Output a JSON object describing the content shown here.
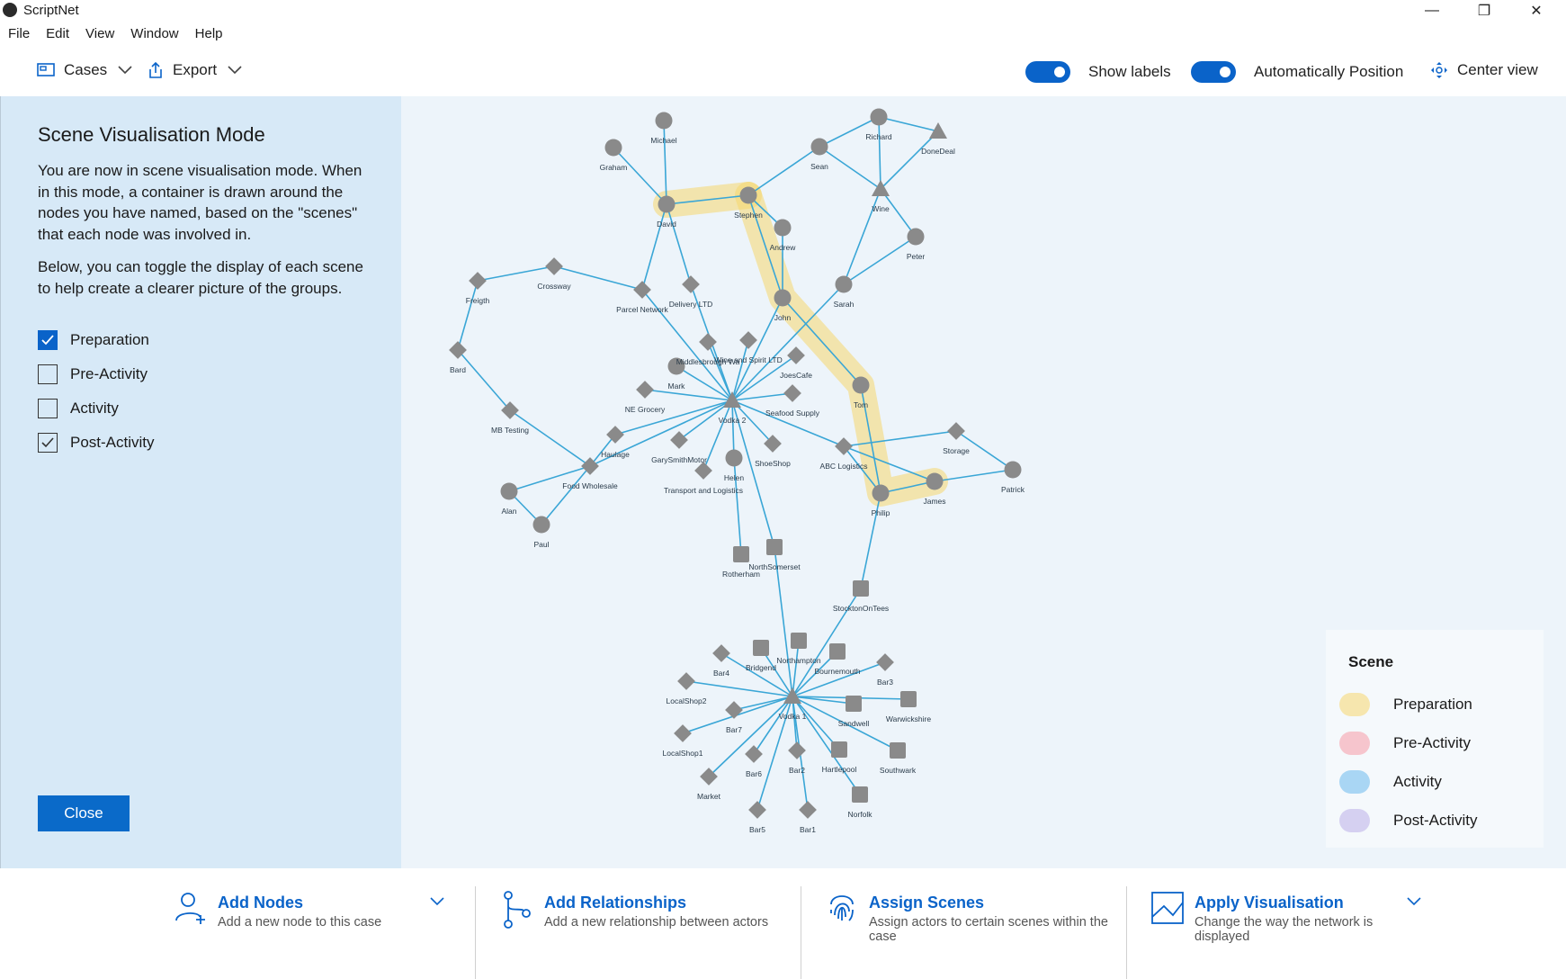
{
  "app": {
    "title": "ScriptNet"
  },
  "window_controls": {
    "minimize": "—",
    "maximize": "❐",
    "close": "✕"
  },
  "menu": [
    "File",
    "Edit",
    "View",
    "Window",
    "Help"
  ],
  "toolbar": {
    "cases": "Cases",
    "export": "Export",
    "show_labels": {
      "label": "Show labels",
      "on": true
    },
    "auto_position": {
      "label": "Automatically Position",
      "on": true
    },
    "center_view": "Center view"
  },
  "left_panel": {
    "title": "Scene Visualisation Mode",
    "para1": "You are now in scene visualisation mode. When in this mode, a container is drawn around the nodes you have named, based on the \"scenes\" that each node was involved in.",
    "para2": "Below, you can toggle the display of each scene to help create a clearer picture of the groups.",
    "checkboxes": [
      {
        "label": "Preparation",
        "checked": true
      },
      {
        "label": "Pre-Activity",
        "checked": false
      },
      {
        "label": "Activity",
        "checked": false
      },
      {
        "label": "Post-Activity",
        "checked": true
      }
    ],
    "close": "Close"
  },
  "legend": {
    "title": "Scene",
    "items": [
      {
        "label": "Preparation",
        "color": "#f5d76e"
      },
      {
        "label": "Pre-Activity",
        "color": "#f59aa5"
      },
      {
        "label": "Activity",
        "color": "#6ab9ec"
      },
      {
        "label": "Post-Activity",
        "color": "#b9aee8"
      }
    ]
  },
  "graph": {
    "nodes": [
      {
        "id": "Michael",
        "shape": "circle"
      },
      {
        "id": "Graham",
        "shape": "circle"
      },
      {
        "id": "David",
        "shape": "circle"
      },
      {
        "id": "Stephen",
        "shape": "circle"
      },
      {
        "id": "Andrew",
        "shape": "circle"
      },
      {
        "id": "Sean",
        "shape": "circle"
      },
      {
        "id": "Richard",
        "shape": "circle"
      },
      {
        "id": "DoneDeal",
        "shape": "triangle"
      },
      {
        "id": "Wine",
        "shape": "triangle"
      },
      {
        "id": "Peter",
        "shape": "circle"
      },
      {
        "id": "Sarah",
        "shape": "circle"
      },
      {
        "id": "John",
        "shape": "circle"
      },
      {
        "id": "Freigth",
        "shape": "diamond"
      },
      {
        "id": "Crossway",
        "shape": "diamond"
      },
      {
        "id": "Parcel Network",
        "shape": "diamond"
      },
      {
        "id": "Delivery LTD",
        "shape": "diamond"
      },
      {
        "id": "Bard",
        "shape": "diamond"
      },
      {
        "id": "Middlesbrough Wa",
        "shape": "diamond"
      },
      {
        "id": "Wine and Spirit LTD",
        "shape": "diamond"
      },
      {
        "id": "JoesCafe",
        "shape": "diamond"
      },
      {
        "id": "Mark",
        "shape": "circle"
      },
      {
        "id": "NE Grocery",
        "shape": "diamond"
      },
      {
        "id": "Vodka 2",
        "shape": "triangle"
      },
      {
        "id": "Seafood Supply",
        "shape": "diamond"
      },
      {
        "id": "Tom",
        "shape": "circle"
      },
      {
        "id": "MB Testing",
        "shape": "diamond"
      },
      {
        "id": "Haulage",
        "shape": "diamond"
      },
      {
        "id": "GarySmithMotor",
        "shape": "diamond"
      },
      {
        "id": "ShoeShop",
        "shape": "diamond"
      },
      {
        "id": "ABC Logistics",
        "shape": "diamond"
      },
      {
        "id": "Storage",
        "shape": "diamond"
      },
      {
        "id": "Patrick",
        "shape": "circle"
      },
      {
        "id": "Food Wholesale",
        "shape": "diamond"
      },
      {
        "id": "Transport and Logistics",
        "shape": "diamond"
      },
      {
        "id": "Helen",
        "shape": "circle"
      },
      {
        "id": "James",
        "shape": "circle"
      },
      {
        "id": "Philip",
        "shape": "circle"
      },
      {
        "id": "Alan",
        "shape": "circle"
      },
      {
        "id": "Paul",
        "shape": "circle"
      },
      {
        "id": "Rotherham",
        "shape": "square"
      },
      {
        "id": "NorthSomerset",
        "shape": "square"
      },
      {
        "id": "StocktonOnTees",
        "shape": "square"
      },
      {
        "id": "Northampton",
        "shape": "square"
      },
      {
        "id": "Bridgend",
        "shape": "square"
      },
      {
        "id": "Bar4",
        "shape": "diamond"
      },
      {
        "id": "Bournemouth",
        "shape": "square"
      },
      {
        "id": "Bar3",
        "shape": "diamond"
      },
      {
        "id": "LocalShop2",
        "shape": "diamond"
      },
      {
        "id": "Vodka 1",
        "shape": "triangle"
      },
      {
        "id": "Warwickshire",
        "shape": "square"
      },
      {
        "id": "Sandwell",
        "shape": "square"
      },
      {
        "id": "Bar7",
        "shape": "diamond"
      },
      {
        "id": "LocalShop1",
        "shape": "diamond"
      },
      {
        "id": "Bar6",
        "shape": "diamond"
      },
      {
        "id": "Bar2",
        "shape": "diamond"
      },
      {
        "id": "Hartlepool",
        "shape": "square"
      },
      {
        "id": "Southwark",
        "shape": "square"
      },
      {
        "id": "Market",
        "shape": "diamond"
      },
      {
        "id": "Norfolk",
        "shape": "square"
      },
      {
        "id": "Bar5",
        "shape": "diamond"
      },
      {
        "id": "Bar1",
        "shape": "diamond"
      }
    ],
    "edges": [
      [
        "Michael",
        "David"
      ],
      [
        "Graham",
        "David"
      ],
      [
        "David",
        "Stephen"
      ],
      [
        "Stephen",
        "Sean"
      ],
      [
        "Sean",
        "Richard"
      ],
      [
        "Richard",
        "DoneDeal"
      ],
      [
        "Richard",
        "Wine"
      ],
      [
        "Wine",
        "DoneDeal"
      ],
      [
        "Sean",
        "Wine"
      ],
      [
        "Wine",
        "Peter"
      ],
      [
        "Wine",
        "Sarah"
      ],
      [
        "Peter",
        "Sarah"
      ],
      [
        "Stephen",
        "Andrew"
      ],
      [
        "Stephen",
        "John"
      ],
      [
        "Andrew",
        "John"
      ],
      [
        "David",
        "Parcel Network"
      ],
      [
        "David",
        "Delivery LTD"
      ],
      [
        "Freigth",
        "Crossway"
      ],
      [
        "Crossway",
        "Parcel Network"
      ],
      [
        "Freigth",
        "Bard"
      ],
      [
        "Bard",
        "MB Testing"
      ],
      [
        "MB Testing",
        "Food Wholesale"
      ],
      [
        "Food Wholesale",
        "Alan"
      ],
      [
        "Food Wholesale",
        "Paul"
      ],
      [
        "Alan",
        "Paul"
      ],
      [
        "Food Wholesale",
        "Haulage"
      ],
      [
        "Vodka 2",
        "Parcel Network"
      ],
      [
        "Vodka 2",
        "Delivery LTD"
      ],
      [
        "Vodka 2",
        "Middlesbrough Wa"
      ],
      [
        "Vodka 2",
        "Wine and Spirit LTD"
      ],
      [
        "Vodka 2",
        "JoesCafe"
      ],
      [
        "Vodka 2",
        "Mark"
      ],
      [
        "Vodka 2",
        "NE Grocery"
      ],
      [
        "Vodka 2",
        "Seafood Supply"
      ],
      [
        "Vodka 2",
        "Haulage"
      ],
      [
        "Vodka 2",
        "GarySmithMotor"
      ],
      [
        "Vodka 2",
        "ShoeShop"
      ],
      [
        "Vodka 2",
        "ABC Logistics"
      ],
      [
        "Vodka 2",
        "Transport and Logistics"
      ],
      [
        "Vodka 2",
        "Helen"
      ],
      [
        "Vodka 2",
        "John"
      ],
      [
        "Vodka 2",
        "Sarah"
      ],
      [
        "Vodka 2",
        "Food Wholesale"
      ],
      [
        "Vodka 2",
        "NorthSomerset"
      ],
      [
        "John",
        "Tom"
      ],
      [
        "Tom",
        "Philip"
      ],
      [
        "ABC Logistics",
        "Storage"
      ],
      [
        "ABC Logistics",
        "Philip"
      ],
      [
        "ABC Logistics",
        "James"
      ],
      [
        "Storage",
        "Patrick"
      ],
      [
        "James",
        "Patrick"
      ],
      [
        "Philip",
        "James"
      ],
      [
        "Philip",
        "StocktonOnTees"
      ],
      [
        "Helen",
        "Rotherham"
      ],
      [
        "NorthSomerset",
        "Vodka 1"
      ],
      [
        "StocktonOnTees",
        "Vodka 1"
      ],
      [
        "Vodka 1",
        "Northampton"
      ],
      [
        "Vodka 1",
        "Bridgend"
      ],
      [
        "Vodka 1",
        "Bar4"
      ],
      [
        "Vodka 1",
        "Bournemouth"
      ],
      [
        "Vodka 1",
        "Bar3"
      ],
      [
        "Vodka 1",
        "LocalShop2"
      ],
      [
        "Vodka 1",
        "Warwickshire"
      ],
      [
        "Vodka 1",
        "Sandwell"
      ],
      [
        "Vodka 1",
        "Bar7"
      ],
      [
        "Vodka 1",
        "LocalShop1"
      ],
      [
        "Vodka 1",
        "Bar6"
      ],
      [
        "Vodka 1",
        "Bar2"
      ],
      [
        "Vodka 1",
        "Hartlepool"
      ],
      [
        "Vodka 1",
        "Southwark"
      ],
      [
        "Vodka 1",
        "Market"
      ],
      [
        "Vodka 1",
        "Norfolk"
      ],
      [
        "Vodka 1",
        "Bar5"
      ],
      [
        "Vodka 1",
        "Bar1"
      ]
    ]
  },
  "bottom": [
    {
      "title": "Add Nodes",
      "subtitle": "Add a new node to this case"
    },
    {
      "title": "Add Relationships",
      "subtitle": "Add a new relationship between actors"
    },
    {
      "title": "Assign Scenes",
      "subtitle": "Assign actors to certain scenes within the case"
    },
    {
      "title": "Apply Visualisation",
      "subtitle": "Change the way the network is displayed"
    }
  ]
}
